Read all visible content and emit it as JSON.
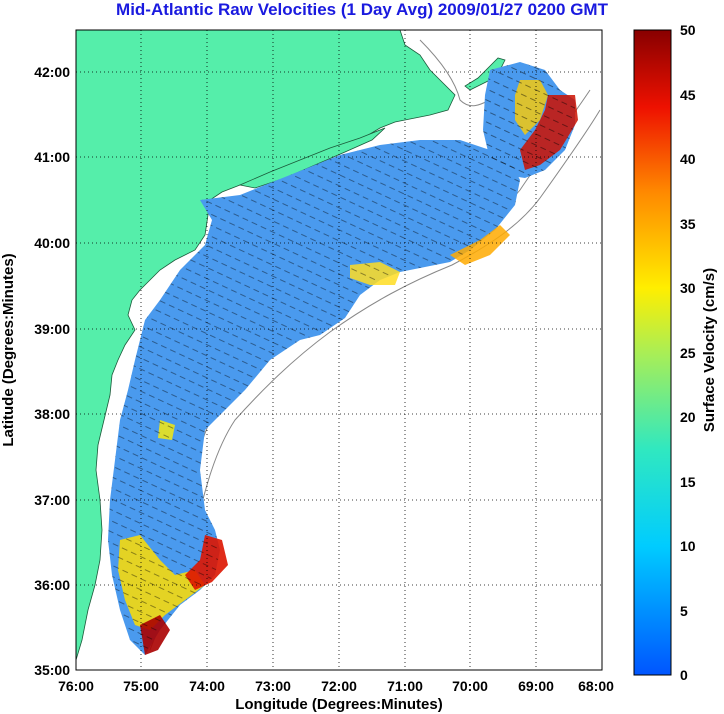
{
  "title": "Mid-Atlantic Raw Velocities (1 Day Avg) 2009/01/27 0200 GMT",
  "map": {
    "xlabel": "Longitude (Degrees:Minutes)",
    "ylabel": "Latitude (Degrees:Minutes)",
    "x_ticks": [
      "76:00",
      "75:00",
      "74:00",
      "73:00",
      "72:00",
      "71:00",
      "70:00",
      "69:00",
      "68:00"
    ],
    "y_ticks": [
      "42:00",
      "41:00",
      "40:00",
      "39:00",
      "38:00",
      "37:00",
      "36:00",
      "35:00"
    ],
    "lon_range": [
      -76,
      -68
    ],
    "lat_range": [
      35,
      42.5
    ],
    "land_color": "#55eeaa",
    "water_color": "#ffffff",
    "grid": "dotted"
  },
  "colorbar": {
    "label": "Surface Velocity (cm/s)",
    "ticks": [
      "50",
      "45",
      "40",
      "35",
      "30",
      "25",
      "20",
      "15",
      "10",
      "5",
      "0"
    ],
    "range": [
      0,
      50
    ],
    "colormap": "jet"
  }
}
